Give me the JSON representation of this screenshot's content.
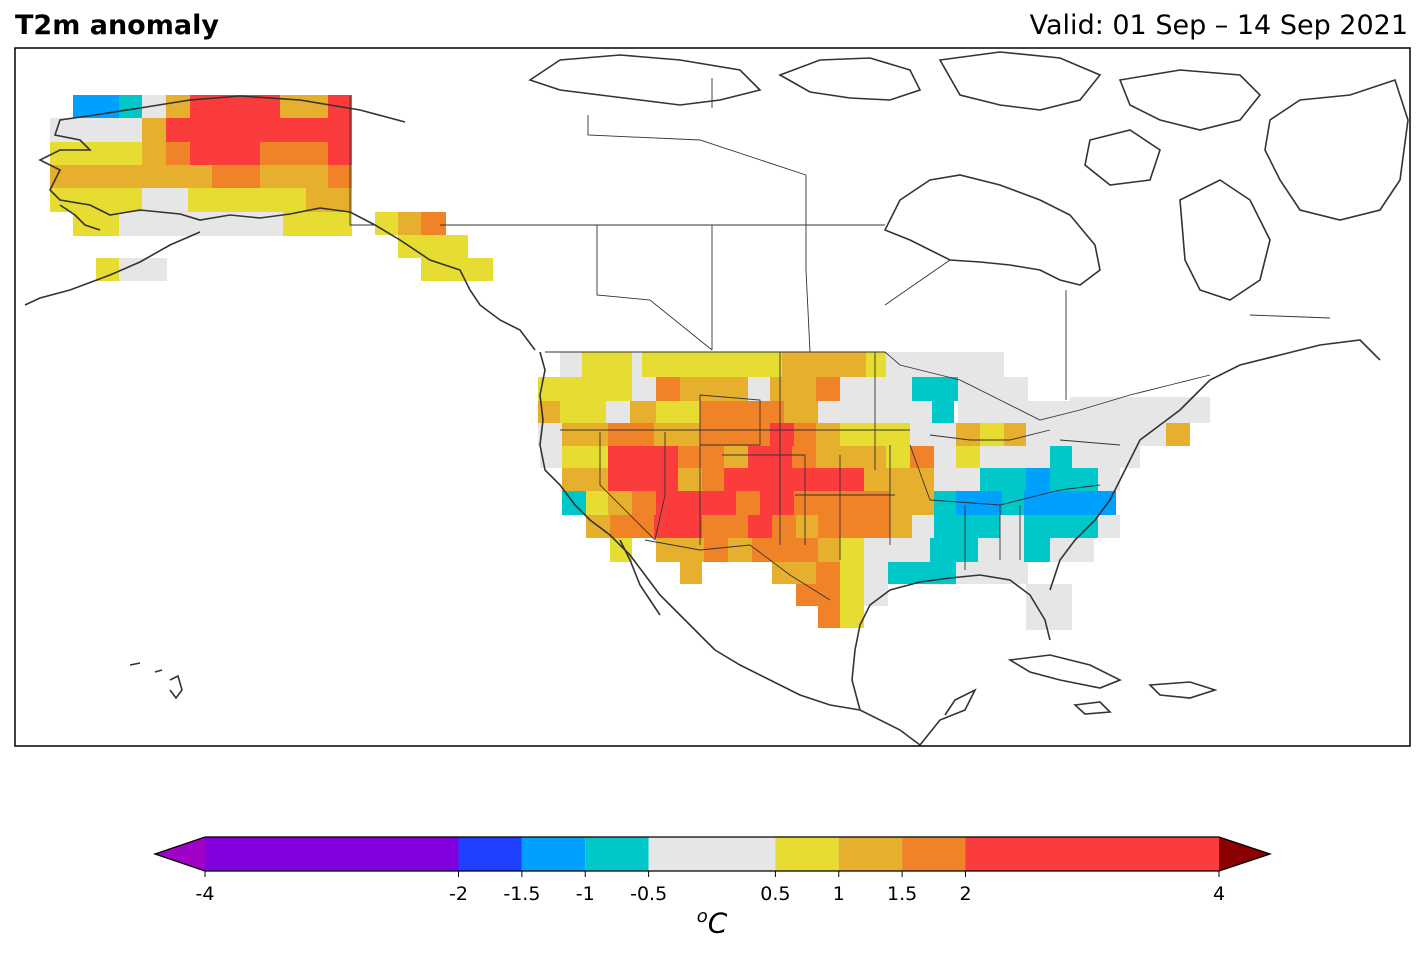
{
  "title": "T2m anomaly",
  "valid": "Valid: 01 Sep – 14 Sep 2021",
  "colorbar": {
    "unit_base": "C",
    "unit_sup": "o",
    "ticks": [
      "-4",
      "-2",
      "-1.5",
      "-1",
      "-0.5",
      "0.5",
      "1",
      "1.5",
      "2",
      "4"
    ],
    "bounds": [
      -4,
      -2,
      -1.5,
      -1,
      -0.5,
      0.5,
      1,
      1.5,
      2,
      4
    ],
    "colors": [
      "#8000e0",
      "#2040ff",
      "#00a0ff",
      "#00c8c8",
      "#e6e6e6",
      "#e6dc32",
      "#e6af2d",
      "#f08228",
      "#fa3c3c"
    ],
    "under_color": "#a000c8",
    "over_color": "#8b0000"
  },
  "colors": {
    "lt_m1": "#00c8c8",
    "lt_m15": "#00a0ff",
    "neutral": "#e6e6e6",
    "gt_05": "#e6dc32",
    "gt_1": "#e6af2d",
    "gt_15": "#f08228",
    "gt_2": "#fa3c3c"
  }
}
